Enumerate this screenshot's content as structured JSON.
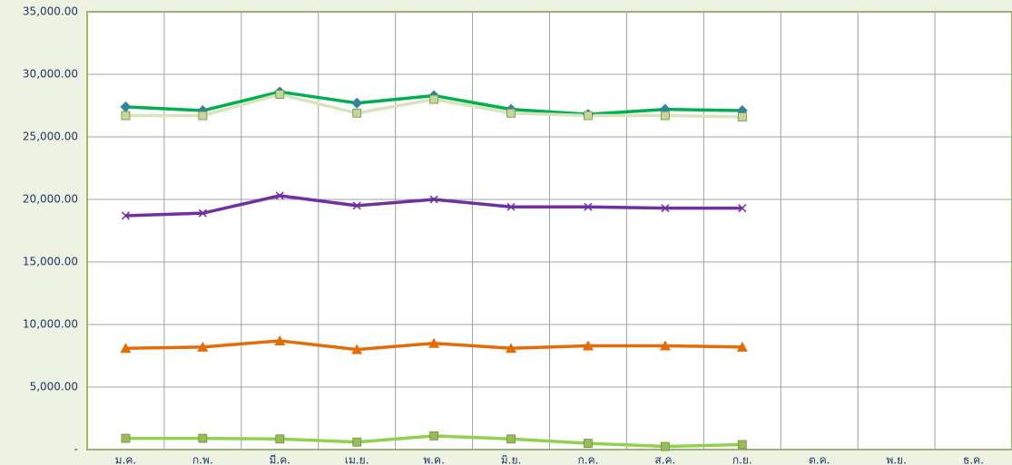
{
  "chart_data": {
    "type": "line",
    "categories": [
      "ม.ค.",
      "ก.พ.",
      "มี.ค.",
      "เม.ย.",
      "พ.ค.",
      "มิ.ย.",
      "ก.ค.",
      "ส.ค.",
      "ก.ย.",
      "ต.ค.",
      "พ.ย.",
      "ธ.ค."
    ],
    "ylim": [
      0,
      35000
    ],
    "yticks": [
      {
        "value": 0,
        "label": "-"
      },
      {
        "value": 5000,
        "label": "5,000.00"
      },
      {
        "value": 10000,
        "label": "10,000.00"
      },
      {
        "value": 15000,
        "label": "15,000.00"
      },
      {
        "value": 20000,
        "label": "20,000.00"
      },
      {
        "value": 25000,
        "label": "25,000.00"
      },
      {
        "value": 30000,
        "label": "30,000.00"
      },
      {
        "value": 35000,
        "label": "35,000.00"
      }
    ],
    "grid": true,
    "series": [
      {
        "color": "#00b050",
        "marker_color": "#31849b",
        "marker": "diamond",
        "values": [
          27400,
          27100,
          28600,
          27700,
          28300,
          27200,
          26800,
          27200,
          27100,
          null,
          null,
          null
        ]
      },
      {
        "color": "#d7e4bd",
        "marker_color": "#c3d69b",
        "marker": "square",
        "values": [
          26700,
          26700,
          28400,
          26900,
          28000,
          26900,
          26700,
          26700,
          26600,
          null,
          null,
          null
        ]
      },
      {
        "color": "#7030a0",
        "marker_color": "#7030a0",
        "marker": "x",
        "values": [
          18700,
          18900,
          20300,
          19500,
          20000,
          19400,
          19400,
          19300,
          19300,
          null,
          null,
          null
        ]
      },
      {
        "color": "#e36c09",
        "marker_color": "#e36c09",
        "marker": "triangle",
        "values": [
          8100,
          8200,
          8700,
          8000,
          8500,
          8100,
          8300,
          8300,
          8200,
          null,
          null,
          null
        ]
      },
      {
        "color": "#92d050",
        "marker_color": "#9bbb59",
        "marker": "square",
        "values": [
          900,
          900,
          850,
          600,
          1100,
          850,
          500,
          250,
          400,
          null,
          null,
          null
        ]
      }
    ]
  }
}
